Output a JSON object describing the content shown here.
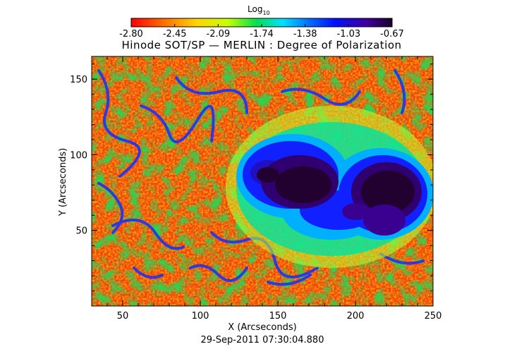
{
  "colorbar": {
    "label": "Log",
    "label_subscript": "10",
    "ticks": [
      "-2.80",
      "-2.45",
      "-2.09",
      "-1.74",
      "-1.38",
      "-1.03",
      "-0.67"
    ],
    "colors": [
      "#ff0000",
      "#ff6a00",
      "#ffd400",
      "#c8ff00",
      "#00e050",
      "#00e0ff",
      "#0070ff",
      "#0010ff",
      "#4000a0",
      "#1a0028"
    ]
  },
  "title": "Hinode SOT/SP — MERLIN : Degree of Polarization",
  "x_axis": {
    "label": "X (Arcseconds)",
    "range": [
      30,
      250
    ],
    "ticks": [
      50,
      100,
      150,
      200,
      250
    ]
  },
  "y_axis": {
    "label": "Y (Arcseconds)",
    "range": [
      0,
      165
    ],
    "ticks": [
      50,
      100,
      150
    ]
  },
  "timestamp": "29-Sep-2011 07:30:04.880"
}
